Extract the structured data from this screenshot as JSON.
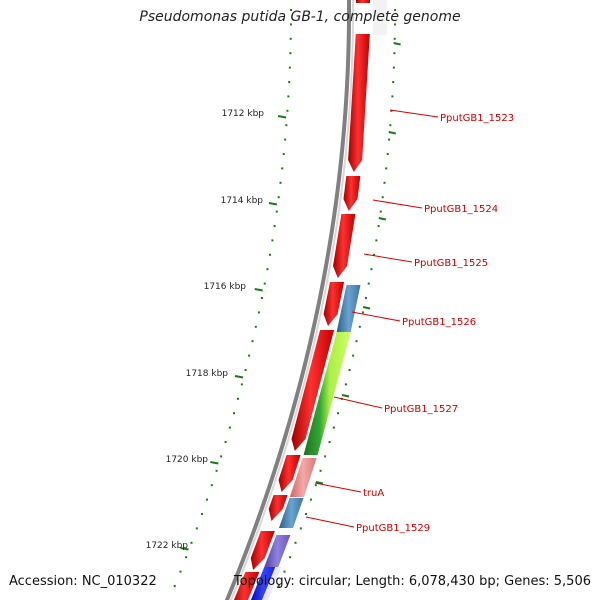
{
  "title": "Pseudomonas putida GB-1, complete genome",
  "accession": "Accession: NC_010322",
  "summary": "Topology: circular; Length: 6,078,430 bp; Genes: 5,506",
  "scale_labels": [
    "1712 kbp",
    "1714 kbp",
    "1716 kbp",
    "1718 kbp",
    "1720 kbp",
    "1722 kbp"
  ],
  "genes": [
    {
      "label": "PputGB1_1523",
      "color": "#ee1111"
    },
    {
      "label": "PputGB1_1524",
      "color": "#ee1111"
    },
    {
      "label": "PputGB1_1525",
      "color": "#ee1111"
    },
    {
      "label": "PputGB1_1526",
      "color": "#4a86b8"
    },
    {
      "label": "PputGB1_1527",
      "color": "#99dd33"
    },
    {
      "label": "truA",
      "color": "#e88a8a"
    },
    {
      "label": "PputGB1_1529",
      "color": "#4a86b8"
    }
  ],
  "colors": {
    "forward_strand": "#ee1111",
    "label": "#cc0000",
    "scale": "#1a7a1a",
    "backbone": "#808080"
  }
}
